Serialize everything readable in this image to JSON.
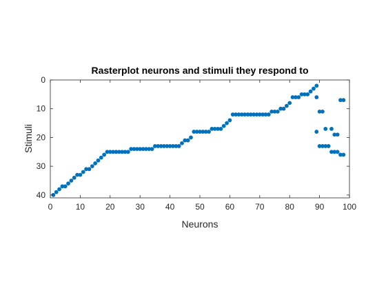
{
  "chart_data": {
    "type": "scatter",
    "title": "Rasterplot neurons and stimuli they respond to",
    "xlabel": "Neurons",
    "ylabel": "Stimuli",
    "xlim": [
      0,
      100
    ],
    "ylim": [
      0,
      41
    ],
    "y_reversed": true,
    "grid": false,
    "legend": "none",
    "marker": "filled-circle",
    "color": "#0072BD",
    "x_ticks": [
      0,
      10,
      20,
      30,
      40,
      50,
      60,
      70,
      80,
      90,
      100
    ],
    "y_ticks": [
      0,
      10,
      20,
      30,
      40
    ],
    "series": [
      {
        "points": [
          [
            1,
            40
          ],
          [
            2,
            39
          ],
          [
            3,
            38
          ],
          [
            4,
            37
          ],
          [
            5,
            37
          ],
          [
            6,
            36
          ],
          [
            7,
            35
          ],
          [
            8,
            34
          ],
          [
            9,
            33
          ],
          [
            10,
            33
          ],
          [
            11,
            32
          ],
          [
            12,
            31
          ],
          [
            13,
            31
          ],
          [
            14,
            30
          ],
          [
            15,
            29
          ],
          [
            16,
            28
          ],
          [
            17,
            27
          ],
          [
            18,
            26
          ],
          [
            19,
            25
          ],
          [
            20,
            25
          ],
          [
            21,
            25
          ],
          [
            22,
            25
          ],
          [
            23,
            25
          ],
          [
            24,
            25
          ],
          [
            25,
            25
          ],
          [
            26,
            25
          ],
          [
            27,
            24
          ],
          [
            28,
            24
          ],
          [
            29,
            24
          ],
          [
            30,
            24
          ],
          [
            31,
            24
          ],
          [
            32,
            24
          ],
          [
            33,
            24
          ],
          [
            34,
            24
          ],
          [
            35,
            23
          ],
          [
            36,
            23
          ],
          [
            37,
            23
          ],
          [
            38,
            23
          ],
          [
            39,
            23
          ],
          [
            40,
            23
          ],
          [
            41,
            23
          ],
          [
            42,
            23
          ],
          [
            43,
            23
          ],
          [
            44,
            22
          ],
          [
            45,
            21
          ],
          [
            46,
            21
          ],
          [
            47,
            20
          ],
          [
            48,
            18
          ],
          [
            49,
            18
          ],
          [
            50,
            18
          ],
          [
            51,
            18
          ],
          [
            52,
            18
          ],
          [
            53,
            18
          ],
          [
            54,
            17
          ],
          [
            55,
            17
          ],
          [
            56,
            17
          ],
          [
            57,
            17
          ],
          [
            58,
            16
          ],
          [
            59,
            15
          ],
          [
            60,
            14
          ],
          [
            61,
            12
          ],
          [
            62,
            12
          ],
          [
            63,
            12
          ],
          [
            64,
            12
          ],
          [
            65,
            12
          ],
          [
            66,
            12
          ],
          [
            67,
            12
          ],
          [
            68,
            12
          ],
          [
            69,
            12
          ],
          [
            70,
            12
          ],
          [
            71,
            12
          ],
          [
            72,
            12
          ],
          [
            73,
            12
          ],
          [
            74,
            11
          ],
          [
            75,
            11
          ],
          [
            76,
            11
          ],
          [
            77,
            10
          ],
          [
            78,
            10
          ],
          [
            79,
            9
          ],
          [
            80,
            8
          ],
          [
            81,
            6
          ],
          [
            82,
            6
          ],
          [
            83,
            6
          ],
          [
            84,
            5
          ],
          [
            85,
            5
          ],
          [
            86,
            5
          ],
          [
            87,
            4
          ],
          [
            88,
            3
          ],
          [
            89,
            2
          ],
          [
            89,
            6
          ],
          [
            89,
            18
          ],
          [
            90,
            11
          ],
          [
            90,
            23
          ],
          [
            91,
            11
          ],
          [
            91,
            23
          ],
          [
            92,
            17
          ],
          [
            92,
            23
          ],
          [
            93,
            23
          ],
          [
            94,
            17
          ],
          [
            94,
            25
          ],
          [
            95,
            19
          ],
          [
            95,
            25
          ],
          [
            96,
            19
          ],
          [
            96,
            25
          ],
          [
            97,
            7
          ],
          [
            97,
            26
          ],
          [
            98,
            7
          ],
          [
            98,
            26
          ]
        ]
      }
    ]
  }
}
